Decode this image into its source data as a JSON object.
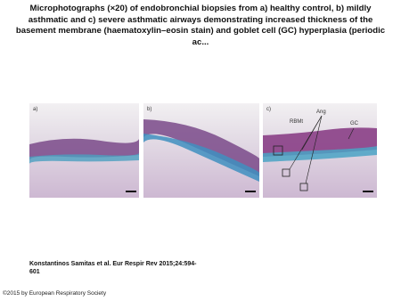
{
  "header": {
    "title": "Microphotographs (×20) of endobronchial biopsies from a) healthy control, b) mildly asthmatic and c) severe asthmatic airways demonstrating increased thickness of the basement membrane (haematoxylin–eosin stain) and goblet cell (GC) hyperplasia (periodic ac..."
  },
  "figure": {
    "panels": [
      {
        "label": "a)"
      },
      {
        "label": "b)"
      },
      {
        "label": "c)",
        "annotations": [
          "RBMt",
          "Ang",
          "GC"
        ]
      }
    ]
  },
  "citation": "Konstantinos Samitas et al. Eur Respir Rev 2015;24:594-601",
  "copyright": "©2015 by European Respiratory Society"
}
